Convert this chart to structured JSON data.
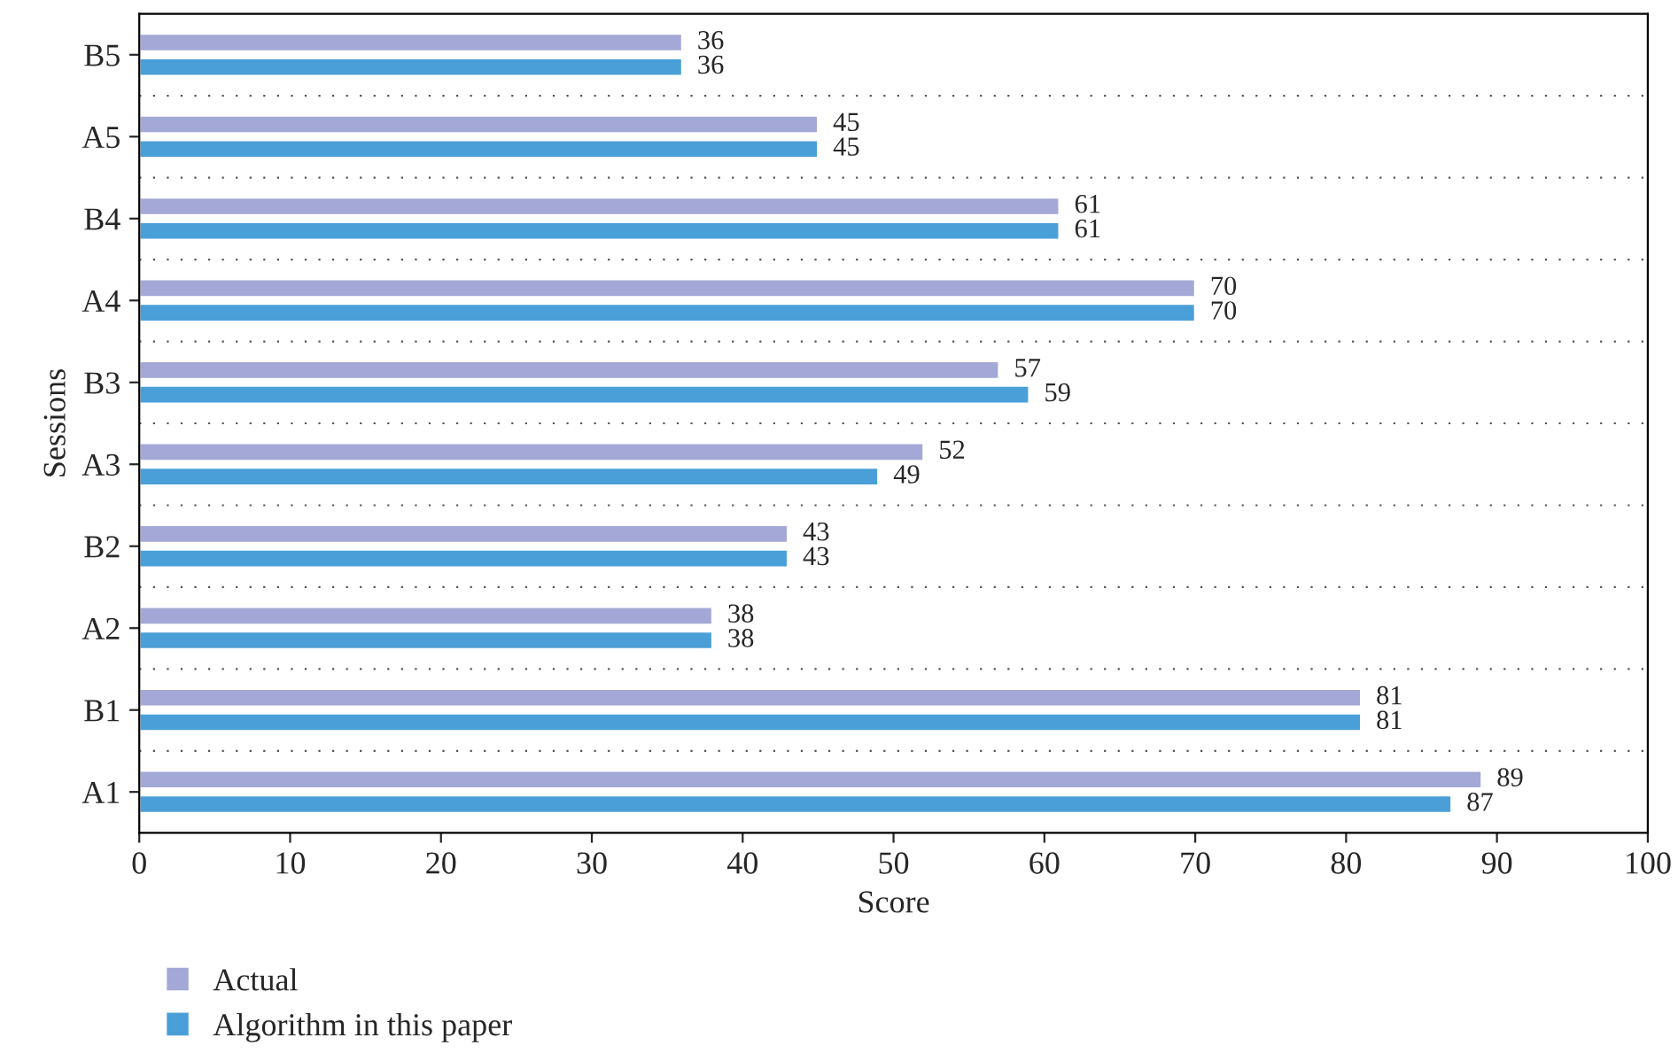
{
  "chart_data": {
    "type": "bar",
    "orientation": "horizontal",
    "xlabel": "Score",
    "ylabel": "Sessions",
    "categories": [
      "B5",
      "A5",
      "B4",
      "A4",
      "B3",
      "A3",
      "B2",
      "A2",
      "B1",
      "A1"
    ],
    "series": [
      {
        "name": "Actual",
        "color": "#a3a8d6",
        "values": [
          36,
          45,
          61,
          70,
          57,
          52,
          43,
          38,
          81,
          89
        ]
      },
      {
        "name": "Algorithm in this paper",
        "color": "#4a9fd8",
        "values": [
          36,
          45,
          61,
          70,
          59,
          49,
          43,
          38,
          81,
          87
        ]
      }
    ],
    "xlim": [
      0,
      100
    ],
    "xticks": [
      0,
      10,
      20,
      30,
      40,
      50,
      60,
      70,
      80,
      90,
      100
    ],
    "data_labels": true,
    "legend": "bottom"
  }
}
